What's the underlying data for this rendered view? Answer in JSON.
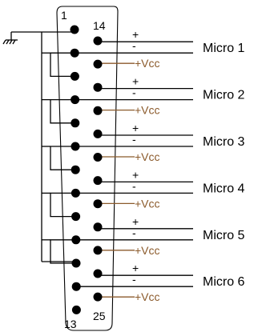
{
  "pin_numbers": {
    "top_left": "1",
    "top_right": "14",
    "bottom_left": "13",
    "bottom_right": "25"
  },
  "connector": {
    "left_pin_count": 13,
    "right_pin_count": 12,
    "ground_icon": "ground-symbol"
  },
  "microphones": [
    {
      "label": "Micro 1",
      "plus": "+",
      "minus": "-",
      "vcc": "+Vcc"
    },
    {
      "label": "Micro 2",
      "plus": "+",
      "minus": "-",
      "vcc": "+Vcc"
    },
    {
      "label": "Micro 3",
      "plus": "+",
      "minus": "-",
      "vcc": "+Vcc"
    },
    {
      "label": "Micro 4",
      "plus": "+",
      "minus": "-",
      "vcc": "+Vcc"
    },
    {
      "label": "Micro 5",
      "plus": "+",
      "minus": "-",
      "vcc": "+Vcc"
    },
    {
      "label": "Micro 6",
      "plus": "+",
      "minus": "-",
      "vcc": "+Vcc"
    }
  ],
  "colors": {
    "wire": "#000000",
    "vcc": "#8b5a2b"
  }
}
